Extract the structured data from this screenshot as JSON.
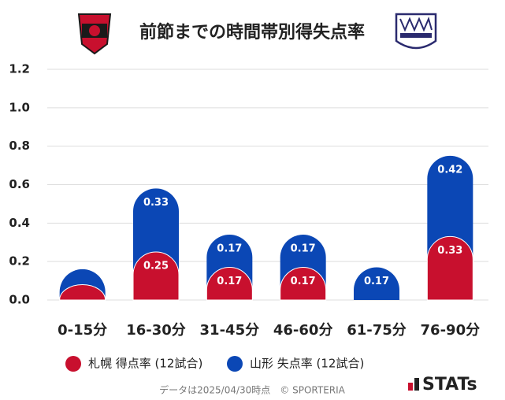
{
  "chart_data": {
    "type": "stacked_bar",
    "title": "前節までの時間帯別得失点率",
    "categories": [
      "0-15分",
      "16-30分",
      "31-45分",
      "46-60分",
      "61-75分",
      "76-90分"
    ],
    "series": [
      {
        "name": "札幌 得点率 (12試合)",
        "color": "#c8102e",
        "values": [
          0.08,
          0.25,
          0.17,
          0.17,
          0,
          0.33
        ],
        "value_labels": [
          null,
          "0.25",
          "0.17",
          "0.17",
          null,
          "0.33"
        ]
      },
      {
        "name": "山形 失点率 (12試合)",
        "color": "#0b47b5",
        "values": [
          0.08,
          0.33,
          0.17,
          0.17,
          0.17,
          0.42
        ],
        "value_labels": [
          null,
          "0.33",
          "0.17",
          "0.17",
          "0.17",
          "0.42"
        ]
      }
    ],
    "ylim": [
      0,
      1.2
    ],
    "yticks": [
      {
        "value": 0,
        "label": "0.0"
      },
      0.2,
      0.4,
      0.6,
      0.8,
      {
        "value": 1,
        "label": "1.0"
      },
      1.2
    ],
    "grid": true,
    "footer": "データは2025/04/30時点　© SPORTERIA",
    "brand": "STATs"
  }
}
